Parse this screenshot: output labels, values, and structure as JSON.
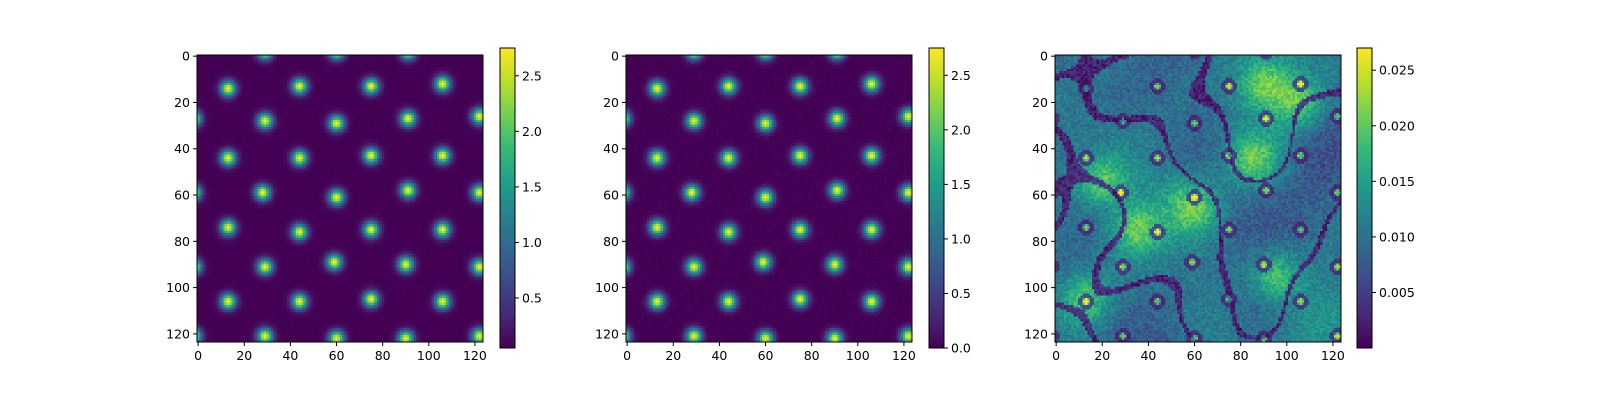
{
  "chart_data": [
    {
      "type": "heatmap",
      "colormap": "viridis",
      "pattern": "hexagonal lattice of bright gaussian spots on dark background",
      "x_ticks": [
        0,
        20,
        40,
        60,
        80,
        100,
        120
      ],
      "y_ticks": [
        0,
        20,
        40,
        60,
        80,
        100,
        120
      ],
      "xlim": [
        0,
        123
      ],
      "ylim": [
        0,
        123
      ],
      "y_axis_inverted": true,
      "colorbar": {
        "min": 0.05,
        "max": 2.75,
        "ticks": [
          0.5,
          1.0,
          1.5,
          2.0,
          2.5
        ],
        "tick_labels": [
          "0.5",
          "1.0",
          "1.5",
          "2.0",
          "2.5"
        ]
      },
      "spots": [
        [
          13,
          14
        ],
        [
          44,
          13
        ],
        [
          75,
          13
        ],
        [
          106,
          12
        ],
        [
          29,
          28
        ],
        [
          60,
          29
        ],
        [
          91,
          27
        ],
        [
          122,
          26
        ],
        [
          -2,
          27
        ],
        [
          13,
          44
        ],
        [
          44,
          44
        ],
        [
          75,
          43
        ],
        [
          106,
          43
        ],
        [
          28,
          59
        ],
        [
          60,
          61
        ],
        [
          91,
          58
        ],
        [
          122,
          59
        ],
        [
          -2,
          59
        ],
        [
          13,
          74
        ],
        [
          44,
          76
        ],
        [
          75,
          75
        ],
        [
          106,
          75
        ],
        [
          29,
          91
        ],
        [
          59,
          89
        ],
        [
          90,
          90
        ],
        [
          122,
          91
        ],
        [
          -2,
          91
        ],
        [
          13,
          106
        ],
        [
          44,
          106
        ],
        [
          75,
          105
        ],
        [
          106,
          106
        ],
        [
          29,
          121
        ],
        [
          60,
          122
        ],
        [
          90,
          122
        ],
        [
          122,
          121
        ],
        [
          -2,
          121
        ],
        [
          29,
          -2
        ],
        [
          60,
          -2
        ],
        [
          91,
          -2
        ]
      ],
      "spot_sigma": 2.3
    },
    {
      "type": "heatmap",
      "colormap": "viridis",
      "pattern": "hexagonal lattice of bright gaussian spots on dark background",
      "x_ticks": [
        0,
        20,
        40,
        60,
        80,
        100,
        120
      ],
      "y_ticks": [
        0,
        20,
        40,
        60,
        80,
        100,
        120
      ],
      "xlim": [
        0,
        123
      ],
      "ylim": [
        0,
        123
      ],
      "y_axis_inverted": true,
      "colorbar": {
        "min": 0.0,
        "max": 2.75,
        "ticks": [
          0.0,
          0.5,
          1.0,
          1.5,
          2.0,
          2.5
        ],
        "tick_labels": [
          "0.0",
          "0.5",
          "1.0",
          "1.5",
          "2.0",
          "2.5"
        ]
      },
      "spots": [
        [
          13,
          14
        ],
        [
          44,
          13
        ],
        [
          75,
          13
        ],
        [
          106,
          12
        ],
        [
          29,
          28
        ],
        [
          60,
          29
        ],
        [
          91,
          27
        ],
        [
          122,
          26
        ],
        [
          -2,
          27
        ],
        [
          13,
          44
        ],
        [
          44,
          44
        ],
        [
          75,
          43
        ],
        [
          106,
          43
        ],
        [
          28,
          59
        ],
        [
          60,
          61
        ],
        [
          91,
          58
        ],
        [
          122,
          59
        ],
        [
          -2,
          59
        ],
        [
          13,
          74
        ],
        [
          44,
          76
        ],
        [
          75,
          75
        ],
        [
          106,
          75
        ],
        [
          29,
          91
        ],
        [
          59,
          89
        ],
        [
          90,
          90
        ],
        [
          122,
          91
        ],
        [
          -2,
          91
        ],
        [
          13,
          106
        ],
        [
          44,
          106
        ],
        [
          75,
          105
        ],
        [
          106,
          106
        ],
        [
          29,
          121
        ],
        [
          60,
          122
        ],
        [
          90,
          122
        ],
        [
          122,
          121
        ],
        [
          -2,
          121
        ],
        [
          29,
          -2
        ],
        [
          60,
          -2
        ],
        [
          91,
          -2
        ]
      ],
      "spot_sigma": 2.3
    },
    {
      "type": "heatmap",
      "colormap": "viridis",
      "pattern": "difference map: noisy cellular texture with dark boundary lines",
      "x_ticks": [
        0,
        20,
        40,
        60,
        80,
        100,
        120
      ],
      "y_ticks": [
        0,
        20,
        40,
        60,
        80,
        100,
        120
      ],
      "xlim": [
        0,
        123
      ],
      "ylim": [
        0,
        123
      ],
      "y_axis_inverted": true,
      "colorbar": {
        "min": 0.0,
        "max": 0.027,
        "ticks": [
          0.005,
          0.01,
          0.015,
          0.02,
          0.025
        ],
        "tick_labels": [
          "0.005",
          "0.010",
          "0.015",
          "0.020",
          "0.025"
        ]
      },
      "hotspots": [
        [
          90,
          12
        ],
        [
          105,
          20
        ],
        [
          12,
          105
        ],
        [
          95,
          95
        ],
        [
          85,
          45
        ],
        [
          35,
          75
        ],
        [
          60,
          65
        ],
        [
          20,
          55
        ]
      ]
    }
  ],
  "colors": {
    "viridis_stops": [
      "#440154",
      "#482878",
      "#3e4989",
      "#31688e",
      "#26828e",
      "#1f9e89",
      "#35b779",
      "#6ece58",
      "#b5de2b",
      "#fde725"
    ],
    "axis": "#000000",
    "background": "#ffffff"
  }
}
